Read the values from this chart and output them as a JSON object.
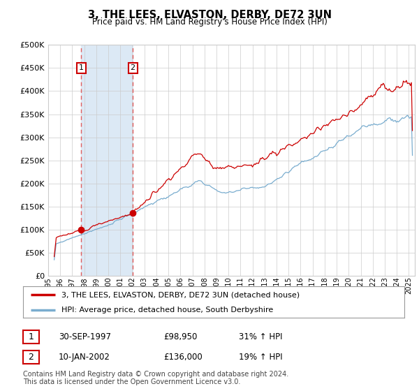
{
  "title": "3, THE LEES, ELVASTON, DERBY, DE72 3UN",
  "subtitle": "Price paid vs. HM Land Registry's House Price Index (HPI)",
  "ytick_values": [
    0,
    50000,
    100000,
    150000,
    200000,
    250000,
    300000,
    350000,
    400000,
    450000,
    500000
  ],
  "ylim": [
    0,
    500000
  ],
  "xlim_start": 1995.3,
  "xlim_end": 2025.5,
  "xtick_years": [
    1995,
    1996,
    1997,
    1998,
    1999,
    2000,
    2001,
    2002,
    2003,
    2004,
    2005,
    2006,
    2007,
    2008,
    2009,
    2010,
    2011,
    2012,
    2013,
    2014,
    2015,
    2016,
    2017,
    2018,
    2019,
    2020,
    2021,
    2022,
    2023,
    2024,
    2025
  ],
  "transaction1_date": 1997.75,
  "transaction1_price": 98950,
  "transaction1_label": "1",
  "transaction2_date": 2002.04,
  "transaction2_price": 136000,
  "transaction2_label": "2",
  "legend_line1": "3, THE LEES, ELVASTON, DERBY, DE72 3UN (detached house)",
  "legend_line2": "HPI: Average price, detached house, South Derbyshire",
  "table_row1": [
    "1",
    "30-SEP-1997",
    "£98,950",
    "31% ↑ HPI"
  ],
  "table_row2": [
    "2",
    "10-JAN-2002",
    "£136,000",
    "19% ↑ HPI"
  ],
  "footnote": "Contains HM Land Registry data © Crown copyright and database right 2024.\nThis data is licensed under the Open Government Licence v3.0.",
  "red_line_color": "#cc0000",
  "blue_line_color": "#7aadcf",
  "grid_color": "#cccccc",
  "highlight_fill": "#dce9f5",
  "transaction_dot_color": "#cc0000",
  "dashed_line_color": "#e06060",
  "background_color": "#ffffff"
}
